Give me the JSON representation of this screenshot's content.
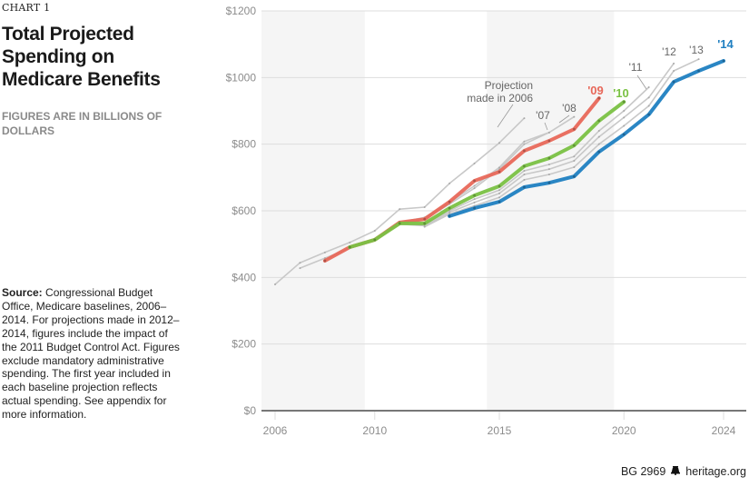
{
  "header": {
    "chart_number": "CHART 1",
    "title": "Total Projected Spending on Medicare Benefits",
    "subtitle": "FIGURES ARE IN BILLIONS OF DOLLARS"
  },
  "source": {
    "label": "Source:",
    "text": " Congressional Budget Office, Medicare baselines, 2006–2014. For projections made in 2012–2014, figures include the impact of the 2011 Budget Control Act. Figures exclude mandatory administrative spending. The first year included in each baseline projection reflects actual spending. See appendix for more information."
  },
  "footer": {
    "code": "BG 2969",
    "logo_icon": "liberty-bell-icon",
    "site": "heritage.org"
  },
  "colors": {
    "proj_2009": "#e8685a",
    "proj_2010": "#7ac143",
    "proj_2014": "#1f7fc1",
    "other": "#c8c8c8",
    "shade": "#f5f5f5",
    "grid": "#dddddd",
    "axis": "#777777"
  },
  "chart_data": {
    "type": "line",
    "title": "Total Projected Spending on Medicare Benefits",
    "subtitle": "Figures are in billions of dollars",
    "xlabel": "",
    "ylabel": "",
    "xlim": [
      2006,
      2024
    ],
    "ylim": [
      0,
      1200
    ],
    "x_ticks": [
      2006,
      2010,
      2015,
      2020,
      2024
    ],
    "y_ticks": [
      0,
      200,
      400,
      600,
      800,
      1000,
      1200
    ],
    "y_tick_labels": [
      "$0",
      "$200",
      "$400",
      "$600",
      "$800",
      "$1000",
      "$1200"
    ],
    "grid": true,
    "shaded_bands": [
      [
        2006,
        2009.6
      ],
      [
        2014.5,
        2019.6
      ]
    ],
    "series": [
      {
        "name": "Projection made in 2006",
        "label": "Projection made in 2006",
        "highlight": false,
        "x": [
          2006,
          2007,
          2008,
          2009,
          2010,
          2011,
          2012,
          2013,
          2014,
          2015,
          2016
        ],
        "values": [
          379,
          444,
          475,
          505,
          540,
          605,
          611,
          682,
          742,
          804,
          878
        ]
      },
      {
        "name": "'07",
        "label": "'07",
        "highlight": false,
        "x": [
          2007,
          2008,
          2009,
          2010,
          2011,
          2012,
          2013,
          2014,
          2015,
          2016,
          2017
        ],
        "values": [
          428,
          458,
          488,
          512,
          562,
          575,
          620,
          668,
          725,
          800,
          835
        ]
      },
      {
        "name": "'08",
        "label": "'08",
        "highlight": false,
        "x": [
          2008,
          2009,
          2010,
          2011,
          2012,
          2013,
          2014,
          2015,
          2016,
          2017,
          2018
        ],
        "values": [
          452,
          490,
          515,
          565,
          580,
          625,
          675,
          730,
          808,
          835,
          882
        ]
      },
      {
        "name": "'09",
        "label": "'09",
        "highlight": true,
        "color_key": "proj_2009",
        "x": [
          2008,
          2009,
          2010,
          2011,
          2012,
          2013,
          2014,
          2015,
          2016,
          2017,
          2018,
          2019
        ],
        "values": [
          450,
          491,
          513,
          565,
          575,
          627,
          690,
          717,
          780,
          810,
          845,
          938
        ]
      },
      {
        "name": "'10",
        "label": "'10",
        "highlight": true,
        "color_key": "proj_2010",
        "x": [
          2009,
          2010,
          2011,
          2012,
          2013,
          2014,
          2015,
          2016,
          2017,
          2018,
          2019,
          2020
        ],
        "values": [
          491,
          513,
          562,
          562,
          608,
          646,
          674,
          734,
          758,
          796,
          870,
          927
        ]
      },
      {
        "name": "'11",
        "label": "'11",
        "highlight": false,
        "x": [
          2010,
          2011,
          2012,
          2013,
          2014,
          2015,
          2016,
          2017,
          2018,
          2019,
          2020,
          2021
        ],
        "values": [
          513,
          560,
          560,
          600,
          635,
          662,
          720,
          739,
          763,
          840,
          900,
          971
        ]
      },
      {
        "name": "'12",
        "label": "'12",
        "highlight": false,
        "x": [
          2011,
          2012,
          2013,
          2014,
          2015,
          2016,
          2017,
          2018,
          2019,
          2020,
          2021,
          2022
        ],
        "values": [
          560,
          555,
          595,
          625,
          652,
          709,
          725,
          750,
          822,
          880,
          940,
          1042
        ]
      },
      {
        "name": "'13",
        "label": "'13",
        "highlight": false,
        "x": [
          2012,
          2013,
          2014,
          2015,
          2016,
          2017,
          2018,
          2019,
          2020,
          2021,
          2022,
          2023
        ],
        "values": [
          552,
          590,
          615,
          640,
          693,
          709,
          731,
          800,
          855,
          915,
          1020,
          1055
        ]
      },
      {
        "name": "'14",
        "label": "'14",
        "highlight": true,
        "color_key": "proj_2014",
        "x": [
          2013,
          2014,
          2015,
          2016,
          2017,
          2018,
          2019,
          2020,
          2021,
          2022,
          2023,
          2024
        ],
        "values": [
          584,
          608,
          627,
          671,
          684,
          703,
          777,
          829,
          889,
          987,
          1020,
          1050
        ]
      }
    ],
    "annotations": [
      {
        "text_lines": [
          "Projection",
          "made in 2006"
        ],
        "series": "Projection made in 2006"
      },
      {
        "text_lines": [
          "'07"
        ],
        "series": "'07"
      },
      {
        "text_lines": [
          "'08"
        ],
        "series": "'08"
      },
      {
        "text_lines": [
          "'09"
        ],
        "series": "'09"
      },
      {
        "text_lines": [
          "'10"
        ],
        "series": "'10"
      },
      {
        "text_lines": [
          "'11"
        ],
        "series": "'11"
      },
      {
        "text_lines": [
          "'12"
        ],
        "series": "'12"
      },
      {
        "text_lines": [
          "'13"
        ],
        "series": "'13"
      },
      {
        "text_lines": [
          "'14"
        ],
        "series": "'14"
      }
    ]
  }
}
